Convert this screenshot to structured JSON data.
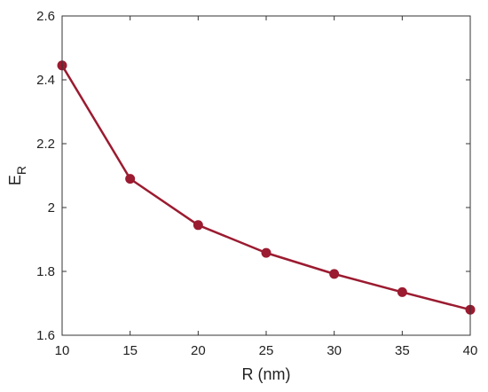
{
  "chart_data": {
    "type": "line",
    "title": "",
    "xlabel": "R (nm)",
    "ylabel_main": "E",
    "ylabel_sub": "R",
    "x": [
      10,
      15,
      20,
      25,
      30,
      35,
      40
    ],
    "series": [
      {
        "values": [
          2.445,
          2.09,
          1.945,
          1.858,
          1.792,
          1.735,
          1.68
        ]
      }
    ],
    "xlim": [
      10,
      40
    ],
    "ylim": [
      1.6,
      2.6
    ],
    "xticks": [
      10,
      15,
      20,
      25,
      30,
      35,
      40
    ],
    "xtick_labels": [
      "10",
      "15",
      "20",
      "25",
      "30",
      "35",
      "40"
    ],
    "yticks": [
      1.6,
      1.8,
      2.0,
      2.2,
      2.4,
      2.6
    ],
    "ytick_labels": [
      "1.6",
      "1.8",
      "2",
      "2.2",
      "2.4",
      "2.6"
    ],
    "grid": false,
    "legend": "none",
    "line_color": "#9b1b30",
    "marker_color": "#9b1b30",
    "marker": "circle"
  }
}
